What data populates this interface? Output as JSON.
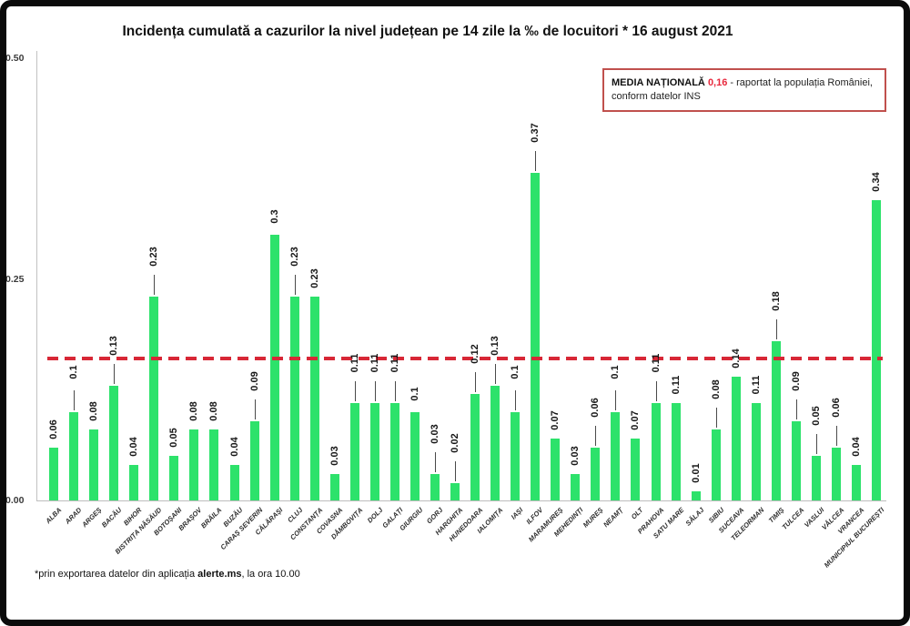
{
  "window": {
    "background": "#ffffff",
    "frame_border_color": "#0b0b0b"
  },
  "title": "Incidența cumulată a cazurilor la nivel județean pe 14 zile la ‰ de locuitori *  16 august 2021",
  "y_axis": {
    "ticks": [
      "0.50",
      "0.25",
      "0.00"
    ]
  },
  "annotation": {
    "label": "MEDIA NAȚIONALĂ",
    "value": "0,16",
    "suffix": "- raportat la populația României, conform datelor INS",
    "border_color": "#c0504d",
    "value_color": "#e8283c"
  },
  "footnote": {
    "prefix": "*prin exportarea datelor din aplicația ",
    "bold": "alerte.ms",
    "suffix": ", la ora 10.00"
  },
  "chart_data": {
    "type": "bar",
    "title": "Incidența cumulată a cazurilor la nivel județean pe 14 zile la ‰ de locuitori * 16 august 2021",
    "xlabel": "",
    "ylabel": "",
    "ylim": [
      0,
      0.5
    ],
    "y_ticks": [
      0,
      0.25,
      0.5
    ],
    "grid": false,
    "bar_color": "#2de26b",
    "reference_line": {
      "value": 0.16,
      "color": "#d82736",
      "style": "dashed",
      "label": "MEDIA NAȚIONALĂ 0,16"
    },
    "categories": [
      "ALBA",
      "ARAD",
      "ARGEȘ",
      "BACĂU",
      "BIHOR",
      "BISTRIȚA NĂSĂUD",
      "BOTOȘANI",
      "BRAȘOV",
      "BRĂILA",
      "BUZĂU",
      "CARAȘ SEVERIN",
      "CĂLĂRAȘI",
      "CLUJ",
      "CONSTANȚA",
      "COVASNA",
      "DÂMBOVIȚA",
      "DOLJ",
      "GALAȚI",
      "GIURGIU",
      "GORJ",
      "HARGHITA",
      "HUNEDOARA",
      "IALOMIȚA",
      "IAȘI",
      "ILFOV",
      "MARAMUREȘ",
      "MEHEDINȚI",
      "MUREȘ",
      "NEAMȚ",
      "OLT",
      "PRAHOVA",
      "SATU MARE",
      "SĂLAJ",
      "SIBIU",
      "SUCEAVA",
      "TELEORMAN",
      "TIMIȘ",
      "TULCEA",
      "VASLUI",
      "VÂLCEA",
      "VRANCEA",
      "MUNICIPIUL BUCUREȘTI"
    ],
    "values": [
      0.06,
      0.1,
      0.08,
      0.13,
      0.04,
      0.23,
      0.05,
      0.08,
      0.08,
      0.04,
      0.09,
      0.3,
      0.23,
      0.23,
      0.03,
      0.11,
      0.11,
      0.11,
      0.1,
      0.03,
      0.02,
      0.12,
      0.13,
      0.1,
      0.37,
      0.07,
      0.03,
      0.06,
      0.1,
      0.07,
      0.11,
      0.11,
      0.01,
      0.08,
      0.14,
      0.11,
      0.18,
      0.09,
      0.05,
      0.06,
      0.04,
      0.34
    ],
    "value_labels": [
      "0.06",
      "0.1",
      "0.08",
      "0.13",
      "0.04",
      "0.23",
      "0.05",
      "0.08",
      "0.08",
      "0.04",
      "0.09",
      "0.3",
      "0.23",
      "0.23",
      "0.03",
      "0.11",
      "0.11",
      "0.11",
      "0.1",
      "0.03",
      "0.02",
      "0.12",
      "0.13",
      "0.1",
      "0.37",
      "0.07",
      "0.03",
      "0.06",
      "0.1",
      "0.07",
      "0.11",
      "0.11",
      "0.01",
      "0.08",
      "0.14",
      "0.11",
      "0.18",
      "0.09",
      "0.05",
      "0.06",
      "0.04",
      "0.34"
    ],
    "callouts": [
      false,
      true,
      false,
      true,
      false,
      true,
      false,
      false,
      false,
      false,
      true,
      false,
      true,
      false,
      false,
      true,
      true,
      true,
      false,
      true,
      true,
      true,
      true,
      true,
      true,
      false,
      false,
      true,
      true,
      false,
      true,
      false,
      false,
      true,
      false,
      false,
      true,
      true,
      true,
      true,
      false,
      false
    ]
  }
}
